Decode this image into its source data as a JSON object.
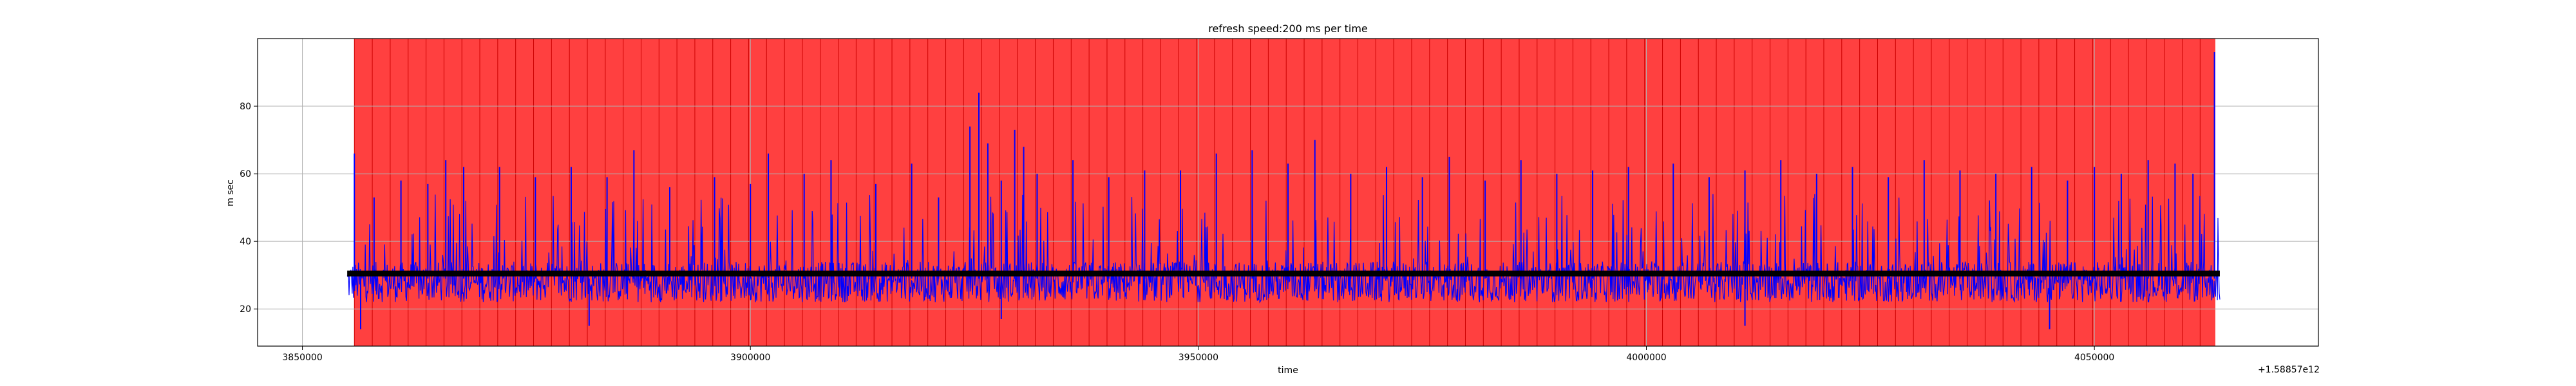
{
  "chart_data": {
    "type": "line",
    "title": "refresh speed:200 ms per time",
    "xlabel": "time",
    "ylabel": "m sec",
    "x_offset_label": "+1.58857e12",
    "xlim": [
      3845000,
      4075000
    ],
    "ylim": [
      9,
      100
    ],
    "x_ticks": [
      3850000,
      3900000,
      3950000,
      4000000,
      4050000
    ],
    "y_ticks": [
      20,
      40,
      60,
      80
    ],
    "grid": true,
    "background_band": {
      "x_start": 3855800,
      "x_end": 4063500,
      "color": "#ff4040",
      "stripe_interval": 2000,
      "stripe_color": "#cc0000"
    },
    "series": [
      {
        "color": "#0000ff",
        "x_start": 3855000,
        "x_end": 4064000,
        "baseline": 29,
        "noise_low": 22,
        "noise_high": 34,
        "spikes": [
          {
            "x": 3855800,
            "y": 66
          },
          {
            "x": 3856500,
            "y": 14
          },
          {
            "x": 3858000,
            "y": 53
          },
          {
            "x": 3861000,
            "y": 58
          },
          {
            "x": 3864000,
            "y": 57
          },
          {
            "x": 3866000,
            "y": 64
          },
          {
            "x": 3868000,
            "y": 62
          },
          {
            "x": 3872000,
            "y": 62
          },
          {
            "x": 3876000,
            "y": 59
          },
          {
            "x": 3880000,
            "y": 62
          },
          {
            "x": 3884000,
            "y": 59
          },
          {
            "x": 3887000,
            "y": 67
          },
          {
            "x": 3891000,
            "y": 56
          },
          {
            "x": 3896000,
            "y": 59
          },
          {
            "x": 3900000,
            "y": 57
          },
          {
            "x": 3902000,
            "y": 66
          },
          {
            "x": 3906000,
            "y": 60
          },
          {
            "x": 3909000,
            "y": 64
          },
          {
            "x": 3914000,
            "y": 57
          },
          {
            "x": 3918000,
            "y": 63
          },
          {
            "x": 3921000,
            "y": 53
          },
          {
            "x": 3924500,
            "y": 74
          },
          {
            "x": 3925500,
            "y": 84
          },
          {
            "x": 3926500,
            "y": 69
          },
          {
            "x": 3928000,
            "y": 58
          },
          {
            "x": 3929500,
            "y": 73
          },
          {
            "x": 3930500,
            "y": 68
          },
          {
            "x": 3932000,
            "y": 60
          },
          {
            "x": 3936000,
            "y": 64
          },
          {
            "x": 3940000,
            "y": 59
          },
          {
            "x": 3944000,
            "y": 61
          },
          {
            "x": 3948000,
            "y": 61
          },
          {
            "x": 3952000,
            "y": 66
          },
          {
            "x": 3956000,
            "y": 67
          },
          {
            "x": 3960000,
            "y": 63
          },
          {
            "x": 3963000,
            "y": 70
          },
          {
            "x": 3967000,
            "y": 60
          },
          {
            "x": 3971000,
            "y": 62
          },
          {
            "x": 3975000,
            "y": 59
          },
          {
            "x": 3978000,
            "y": 65
          },
          {
            "x": 3982000,
            "y": 58
          },
          {
            "x": 3986000,
            "y": 64
          },
          {
            "x": 3990000,
            "y": 60
          },
          {
            "x": 3994000,
            "y": 61
          },
          {
            "x": 3998000,
            "y": 62
          },
          {
            "x": 4003000,
            "y": 63
          },
          {
            "x": 4007000,
            "y": 59
          },
          {
            "x": 4011000,
            "y": 61
          },
          {
            "x": 4015000,
            "y": 64
          },
          {
            "x": 4019000,
            "y": 60
          },
          {
            "x": 4023000,
            "y": 62
          },
          {
            "x": 4027000,
            "y": 59
          },
          {
            "x": 4031000,
            "y": 64
          },
          {
            "x": 4035000,
            "y": 61
          },
          {
            "x": 4039000,
            "y": 60
          },
          {
            "x": 4043000,
            "y": 62
          },
          {
            "x": 4047000,
            "y": 58
          },
          {
            "x": 4050000,
            "y": 62
          },
          {
            "x": 4053000,
            "y": 60
          },
          {
            "x": 4056000,
            "y": 64
          },
          {
            "x": 4059000,
            "y": 63
          },
          {
            "x": 4061000,
            "y": 60
          },
          {
            "x": 4063400,
            "y": 96
          },
          {
            "x": 3882000,
            "y": 15
          },
          {
            "x": 3928000,
            "y": 17
          },
          {
            "x": 4011000,
            "y": 15
          },
          {
            "x": 4045000,
            "y": 14
          }
        ]
      },
      {
        "color": "#000000",
        "x_start": 3855000,
        "x_end": 4064000,
        "constant_y": 30.5
      }
    ]
  }
}
